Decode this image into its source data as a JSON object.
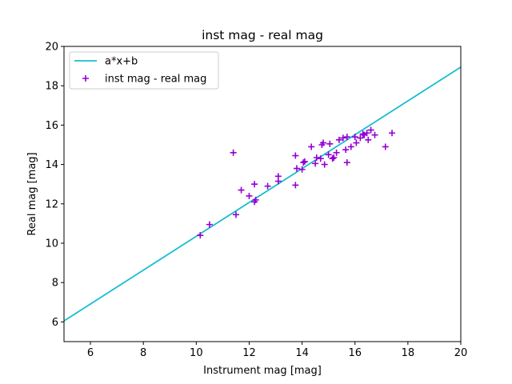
{
  "chart_data": {
    "type": "scatter",
    "title": "inst mag - real mag",
    "xlabel": "Instrument mag [mag]",
    "ylabel": "Real mag [mag]",
    "xlim": [
      5,
      20
    ],
    "ylim": [
      5,
      20
    ],
    "xticks": [
      6,
      8,
      10,
      12,
      14,
      16,
      18,
      20
    ],
    "yticks": [
      6,
      8,
      10,
      12,
      14,
      16,
      18,
      20
    ],
    "grid": false,
    "legend_position": "top-left",
    "series": [
      {
        "name": "a*x+b",
        "kind": "line",
        "color": "#17becf",
        "x": [
          5,
          20
        ],
        "y": [
          6.05,
          18.95
        ]
      },
      {
        "name": "inst mag - real mag",
        "kind": "scatter",
        "marker": "+",
        "color": "#9400d3",
        "x": [
          10.15,
          10.5,
          11.4,
          11.5,
          11.7,
          12.0,
          12.2,
          12.25,
          12.2,
          12.7,
          13.1,
          13.1,
          13.75,
          13.75,
          13.8,
          14.0,
          14.05,
          14.1,
          14.35,
          14.5,
          14.55,
          14.7,
          14.75,
          14.8,
          14.85,
          15.0,
          15.05,
          15.15,
          15.2,
          15.3,
          15.4,
          15.55,
          15.65,
          15.7,
          15.7,
          15.85,
          16.0,
          16.05,
          16.2,
          16.3,
          16.35,
          16.45,
          16.5,
          16.6,
          16.75,
          17.15,
          17.4
        ],
        "y": [
          10.4,
          10.95,
          14.6,
          11.45,
          12.7,
          12.4,
          12.1,
          12.2,
          13.0,
          12.9,
          13.4,
          13.15,
          14.45,
          12.95,
          13.8,
          13.75,
          14.1,
          14.15,
          14.9,
          14.05,
          14.35,
          14.3,
          15.0,
          15.1,
          14.0,
          14.5,
          15.05,
          14.3,
          14.35,
          14.6,
          15.25,
          15.35,
          14.75,
          15.4,
          14.1,
          14.9,
          15.4,
          15.1,
          15.35,
          15.55,
          15.5,
          15.6,
          15.25,
          15.75,
          15.5,
          14.9,
          15.6
        ]
      }
    ]
  }
}
